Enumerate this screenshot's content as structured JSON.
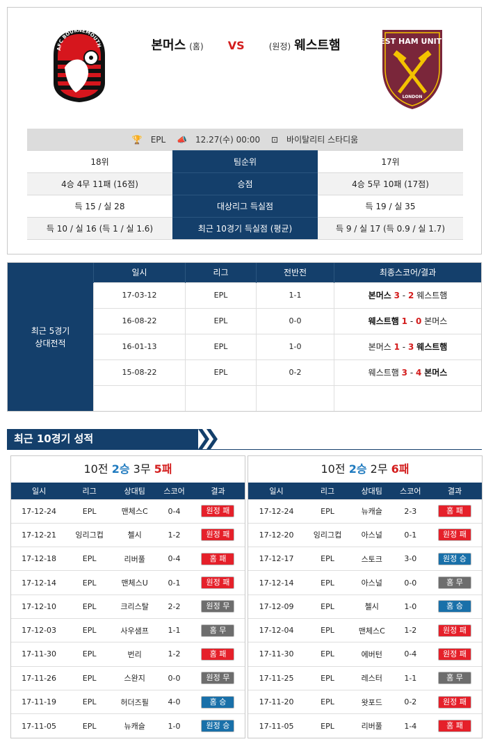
{
  "match": {
    "home_team": "본머스",
    "home_tag": "(홈)",
    "vs": "VS",
    "away_tag": "(원정)",
    "away_team": "웨스트햄",
    "home_logo_text": "AFC BOURNEMOUTH",
    "away_logo_text": "WEST HAM UNITED",
    "away_logo_sub": "LONDON",
    "league": "EPL",
    "datetime": "12.27(수) 00:00",
    "stadium": "바이탈리티 스타디움"
  },
  "stats": [
    {
      "home": "18위",
      "label": "팀순위",
      "away": "17위"
    },
    {
      "home": "4승 4무 11패 (16점)",
      "label": "승점",
      "away": "4승 5무 10패 (17점)"
    },
    {
      "home": "득 15 / 실 28",
      "label": "대상리그 득실점",
      "away": "득 19 / 실 35"
    },
    {
      "home": "득 10 / 실 16 (득 1 / 실 1.6)",
      "label": "최근 10경기 득실점 (평균)",
      "away": "득 9 / 실 17 (득 0.9 / 실 1.7)"
    }
  ],
  "h2h": {
    "title_line1": "최근 5경기",
    "title_line2": "상대전적",
    "headers": [
      "일시",
      "리그",
      "전반전",
      "최종스코어/결과"
    ],
    "rows": [
      {
        "date": "17-03-12",
        "league": "EPL",
        "half": "1-1",
        "team1": "본머스",
        "s1": "3",
        "sep": "-",
        "s2": "2",
        "team2": "웨스트햄",
        "bold": 1
      },
      {
        "date": "16-08-22",
        "league": "EPL",
        "half": "0-0",
        "team1": "웨스트햄",
        "s1": "1",
        "sep": "-",
        "s2": "0",
        "team2": "본머스",
        "bold": 1
      },
      {
        "date": "16-01-13",
        "league": "EPL",
        "half": "1-0",
        "team1": "본머스",
        "s1": "1",
        "sep": "-",
        "s2": "3",
        "team2": "웨스트햄",
        "bold": 2
      },
      {
        "date": "15-08-22",
        "league": "EPL",
        "half": "0-2",
        "team1": "웨스트햄",
        "s1": "3",
        "sep": "-",
        "s2": "4",
        "team2": "본머스",
        "bold": 2
      }
    ]
  },
  "recent": {
    "section_title": "최근 10경기 성적",
    "headers": [
      "일시",
      "리그",
      "상대팀",
      "스코어",
      "결과"
    ],
    "home": {
      "summary_prefix": "10전",
      "wins": "2승",
      "draws": "3무",
      "losses": "5패",
      "rows": [
        {
          "date": "17-12-24",
          "league": "EPL",
          "opp": "맨체스C",
          "score": "0-4",
          "result": "원정 패",
          "type": "loss"
        },
        {
          "date": "17-12-21",
          "league": "잉리그컵",
          "opp": "첼시",
          "score": "1-2",
          "result": "원정 패",
          "type": "loss"
        },
        {
          "date": "17-12-18",
          "league": "EPL",
          "opp": "리버풀",
          "score": "0-4",
          "result": "홈 패",
          "type": "loss"
        },
        {
          "date": "17-12-14",
          "league": "EPL",
          "opp": "맨체스U",
          "score": "0-1",
          "result": "원정 패",
          "type": "loss"
        },
        {
          "date": "17-12-10",
          "league": "EPL",
          "opp": "크리스탈",
          "score": "2-2",
          "result": "원정 무",
          "type": "draw"
        },
        {
          "date": "17-12-03",
          "league": "EPL",
          "opp": "사우샘프",
          "score": "1-1",
          "result": "홈 무",
          "type": "draw"
        },
        {
          "date": "17-11-30",
          "league": "EPL",
          "opp": "번리",
          "score": "1-2",
          "result": "홈 패",
          "type": "loss"
        },
        {
          "date": "17-11-26",
          "league": "EPL",
          "opp": "스완지",
          "score": "0-0",
          "result": "원정 무",
          "type": "draw"
        },
        {
          "date": "17-11-19",
          "league": "EPL",
          "opp": "허더즈필",
          "score": "4-0",
          "result": "홈 승",
          "type": "win"
        },
        {
          "date": "17-11-05",
          "league": "EPL",
          "opp": "뉴캐슬",
          "score": "1-0",
          "result": "원정 승",
          "type": "win"
        }
      ]
    },
    "away": {
      "summary_prefix": "10전",
      "wins": "2승",
      "draws": "2무",
      "losses": "6패",
      "rows": [
        {
          "date": "17-12-24",
          "league": "EPL",
          "opp": "뉴캐슬",
          "score": "2-3",
          "result": "홈 패",
          "type": "loss"
        },
        {
          "date": "17-12-20",
          "league": "잉리그컵",
          "opp": "아스널",
          "score": "0-1",
          "result": "원정 패",
          "type": "loss"
        },
        {
          "date": "17-12-17",
          "league": "EPL",
          "opp": "스토크",
          "score": "3-0",
          "result": "원정 승",
          "type": "win"
        },
        {
          "date": "17-12-14",
          "league": "EPL",
          "opp": "아스널",
          "score": "0-0",
          "result": "홈 무",
          "type": "draw"
        },
        {
          "date": "17-12-09",
          "league": "EPL",
          "opp": "첼시",
          "score": "1-0",
          "result": "홈 승",
          "type": "win"
        },
        {
          "date": "17-12-04",
          "league": "EPL",
          "opp": "맨체스C",
          "score": "1-2",
          "result": "원정 패",
          "type": "loss"
        },
        {
          "date": "17-11-30",
          "league": "EPL",
          "opp": "에버턴",
          "score": "0-4",
          "result": "원정 패",
          "type": "loss"
        },
        {
          "date": "17-11-25",
          "league": "EPL",
          "opp": "레스터",
          "score": "1-1",
          "result": "홈 무",
          "type": "draw"
        },
        {
          "date": "17-11-20",
          "league": "EPL",
          "opp": "왓포드",
          "score": "0-2",
          "result": "원정 패",
          "type": "loss"
        },
        {
          "date": "17-11-05",
          "league": "EPL",
          "opp": "리버풀",
          "score": "1-4",
          "result": "홈 패",
          "type": "loss"
        }
      ]
    }
  },
  "colors": {
    "navy": "#143f6b",
    "loss": "#e5202a",
    "draw": "#6d6d6d",
    "win": "#1970a9",
    "vs": "#d31d1d"
  },
  "icons": [
    "trophy-icon",
    "whistle-icon",
    "stadium-icon"
  ]
}
